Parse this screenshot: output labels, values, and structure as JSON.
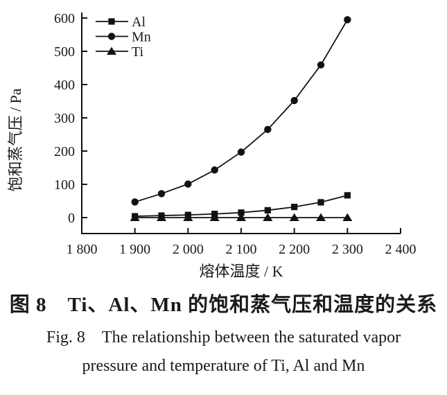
{
  "figure": {
    "caption_cn": "图 8　Ti、Al、Mn 的饱和蒸气压和温度的关系",
    "caption_en_line1": "Fig. 8　The relationship between the saturated vapor",
    "caption_en_line2": "pressure and temperature of Ti, Al and Mn"
  },
  "chart_data": {
    "type": "line",
    "title": "",
    "xlabel": "熔体温度 / K",
    "ylabel": "饱和蒸气压 / Pa",
    "xlim": [
      1800,
      2400
    ],
    "ylim": [
      0,
      600
    ],
    "grid": false,
    "legend_position": "top-left",
    "line_color": "#111111",
    "marker_color": "#111111",
    "background_color": "#ffffff",
    "x": [
      1900,
      1950,
      2000,
      2050,
      2100,
      2150,
      2200,
      2250,
      2300
    ],
    "series": [
      {
        "name": "Al",
        "marker": "square",
        "values": [
          4,
          6,
          8,
          11,
          15,
          22,
          32,
          46,
          67
        ]
      },
      {
        "name": "Mn",
        "marker": "circle",
        "values": [
          47,
          72,
          101,
          143,
          197,
          265,
          352,
          459,
          595
        ]
      },
      {
        "name": "Ti",
        "marker": "triangle",
        "values": [
          0,
          0,
          0,
          0,
          0,
          0,
          0,
          0,
          0
        ]
      }
    ],
    "x_ticks": [
      {
        "v": 1800,
        "label": "1 800"
      },
      {
        "v": 1900,
        "label": "1 900"
      },
      {
        "v": 2000,
        "label": "2 000"
      },
      {
        "v": 2100,
        "label": "2 100"
      },
      {
        "v": 2200,
        "label": "2 200"
      },
      {
        "v": 2300,
        "label": "2 300"
      },
      {
        "v": 2400,
        "label": "2 400"
      }
    ],
    "y_ticks": [
      {
        "v": 0,
        "label": "0"
      },
      {
        "v": 100,
        "label": "100"
      },
      {
        "v": 200,
        "label": "200"
      },
      {
        "v": 300,
        "label": "300"
      },
      {
        "v": 400,
        "label": "400"
      },
      {
        "v": 500,
        "label": "500"
      },
      {
        "v": 600,
        "label": "600"
      }
    ]
  }
}
